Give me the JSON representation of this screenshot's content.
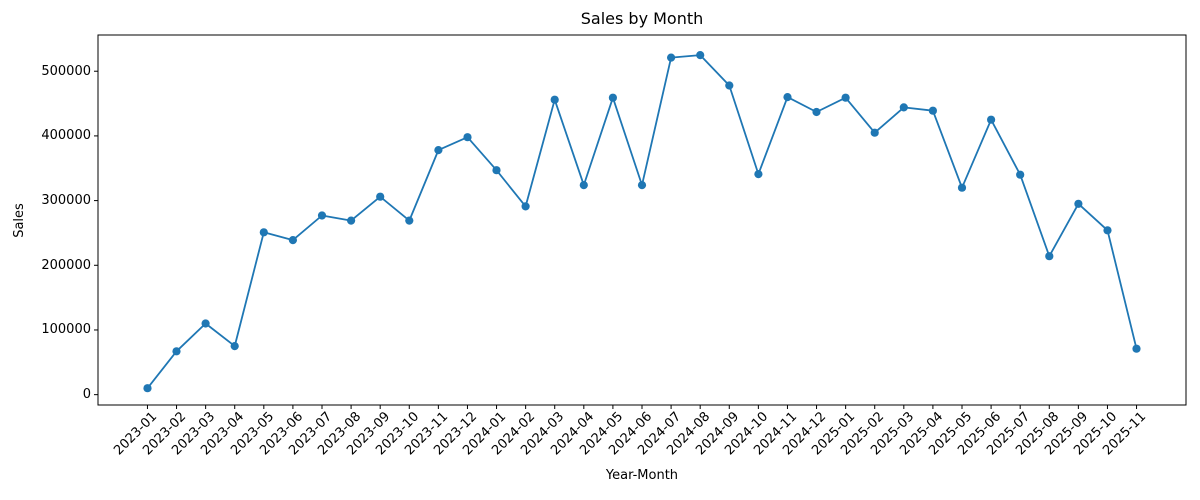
{
  "chart_data": {
    "type": "line",
    "title": "Sales by Month",
    "xlabel": "Year-Month",
    "ylabel": "Sales",
    "categories": [
      "2023-01",
      "2023-02",
      "2023-03",
      "2023-04",
      "2023-05",
      "2023-06",
      "2023-07",
      "2023-08",
      "2023-09",
      "2023-10",
      "2023-11",
      "2023-12",
      "2024-01",
      "2024-02",
      "2024-03",
      "2024-04",
      "2024-05",
      "2024-06",
      "2024-07",
      "2024-08",
      "2024-09",
      "2024-10",
      "2024-11",
      "2024-12",
      "2025-01",
      "2025-02",
      "2025-03",
      "2025-04",
      "2025-05",
      "2025-06",
      "2025-07",
      "2025-08",
      "2025-09",
      "2025-10",
      "2025-11"
    ],
    "values": [
      10000,
      67000,
      110000,
      75000,
      251000,
      239000,
      277000,
      269000,
      306000,
      269000,
      378000,
      398000,
      347000,
      291000,
      456000,
      324000,
      459000,
      324000,
      521000,
      525000,
      478000,
      341000,
      460000,
      437000,
      459000,
      405000,
      444000,
      439000,
      320000,
      425000,
      340000,
      214000,
      295000,
      254000,
      71000
    ],
    "yticks": [
      0,
      100000,
      200000,
      300000,
      400000,
      500000
    ],
    "ylim": [
      -16000,
      556000
    ],
    "xlim": [
      -1.7,
      35.7
    ],
    "grid": false,
    "legend": "none",
    "line_color": "#1f77b4",
    "marker": "circle",
    "text_color": "#000000",
    "spine_color": "#000000",
    "background_color": "#ffffff"
  }
}
